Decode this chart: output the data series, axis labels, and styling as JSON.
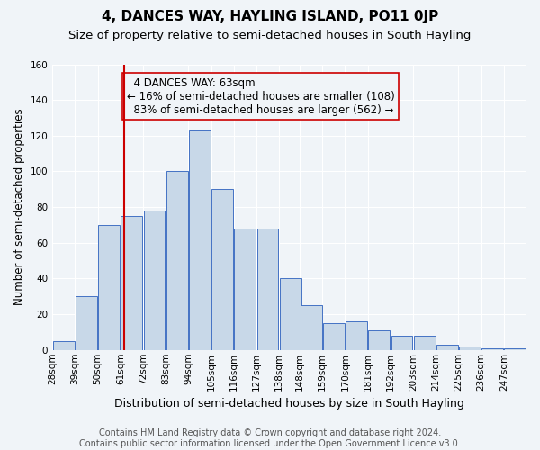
{
  "title": "4, DANCES WAY, HAYLING ISLAND, PO11 0JP",
  "subtitle": "Size of property relative to semi-detached houses in South Hayling",
  "xlabel": "Distribution of semi-detached houses by size in South Hayling",
  "ylabel": "Number of semi-detached properties",
  "property_size": 63,
  "property_label": "4 DANCES WAY: 63sqm",
  "pct_smaller": 16,
  "count_smaller": 108,
  "pct_larger": 83,
  "count_larger": 562,
  "bin_labels": [
    "28sqm",
    "39sqm",
    "50sqm",
    "61sqm",
    "72sqm",
    "83sqm",
    "94sqm",
    "105sqm",
    "116sqm",
    "127sqm",
    "138sqm",
    "148sqm",
    "159sqm",
    "170sqm",
    "181sqm",
    "192sqm",
    "203sqm",
    "214sqm",
    "225sqm",
    "236sqm",
    "247sqm"
  ],
  "bar_heights": [
    5,
    30,
    70,
    75,
    78,
    100,
    123,
    90,
    68,
    68,
    40,
    25,
    15,
    16,
    11,
    8,
    8,
    3,
    2,
    1,
    1
  ],
  "bin_starts": [
    28,
    39,
    50,
    61,
    72,
    83,
    94,
    105,
    116,
    127,
    138,
    148,
    159,
    170,
    181,
    192,
    203,
    214,
    225,
    236,
    247
  ],
  "bin_width": 11,
  "bar_color": "#c8d8e8",
  "bar_edge_color": "#4472c4",
  "vline_color": "#cc0000",
  "box_edge_color": "#cc0000",
  "background_color": "#f0f4f8",
  "grid_color": "#ffffff",
  "ylim": [
    0,
    160
  ],
  "yticks": [
    0,
    20,
    40,
    60,
    80,
    100,
    120,
    140,
    160
  ],
  "footer_text": "Contains HM Land Registry data © Crown copyright and database right 2024.\nContains public sector information licensed under the Open Government Licence v3.0.",
  "title_fontsize": 11,
  "subtitle_fontsize": 9.5,
  "tick_fontsize": 7.5,
  "annotation_fontsize": 8.5,
  "xlabel_fontsize": 9,
  "ylabel_fontsize": 8.5,
  "footer_fontsize": 7
}
